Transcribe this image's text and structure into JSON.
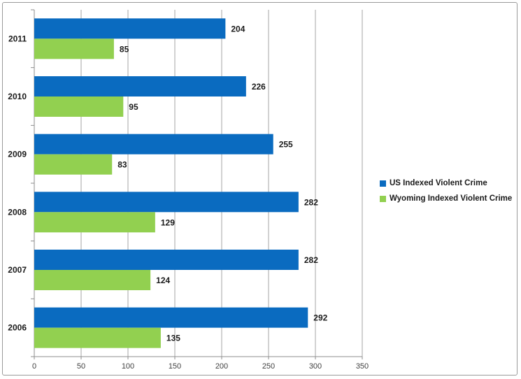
{
  "chart_data": {
    "type": "bar",
    "orientation": "horizontal",
    "categories": [
      "2011",
      "2010",
      "2009",
      "2008",
      "2007",
      "2006"
    ],
    "series": [
      {
        "name": "US Indexed Violent Crime",
        "color": "#0a6bc0",
        "values": [
          204,
          226,
          255,
          282,
          282,
          292
        ]
      },
      {
        "name": "Wyoming Indexed Violent Crime",
        "color": "#92d050",
        "values": [
          85,
          95,
          83,
          129,
          124,
          135
        ]
      }
    ],
    "x_ticks": [
      0,
      50,
      100,
      150,
      200,
      250,
      300,
      350
    ],
    "xlim": [
      0,
      350
    ],
    "grid": true,
    "legend_position": "right",
    "data_labels": true,
    "title": "",
    "xlabel": "",
    "ylabel": ""
  }
}
